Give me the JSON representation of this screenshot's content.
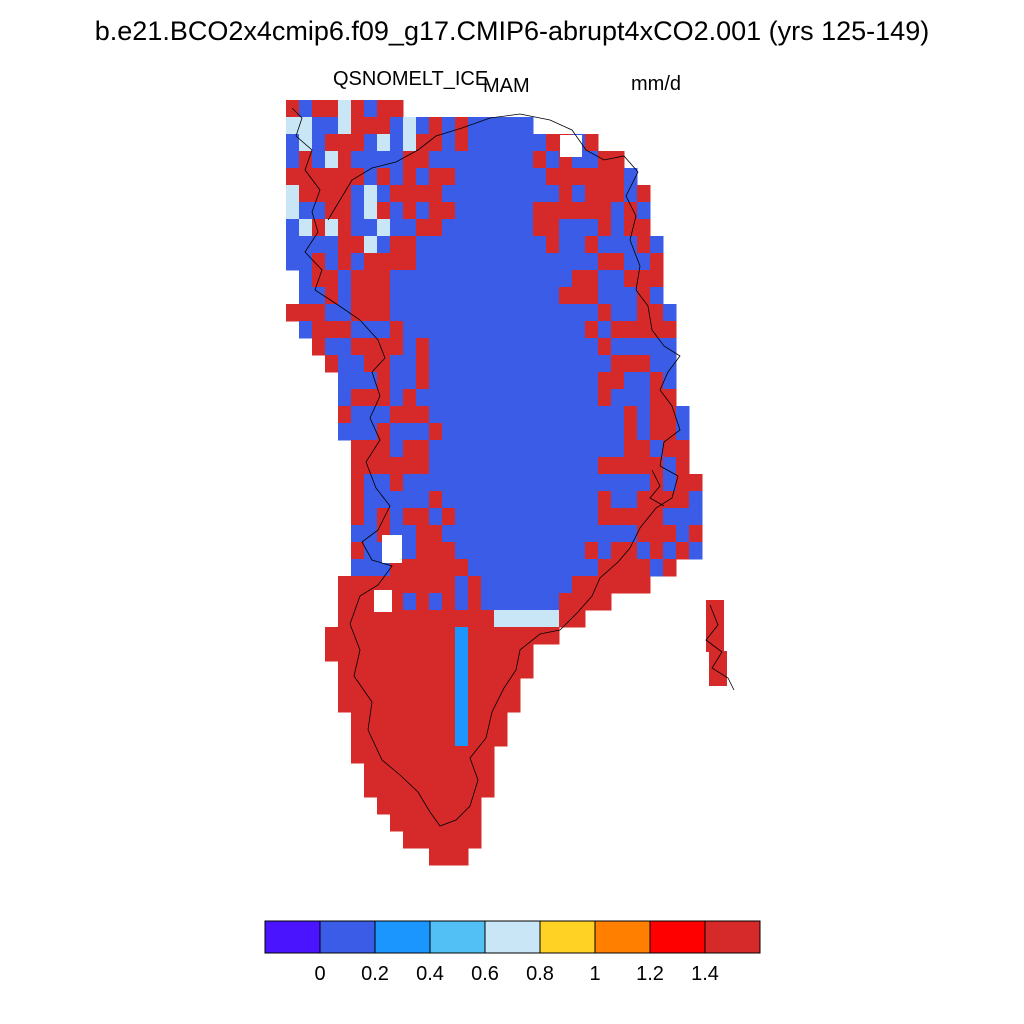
{
  "title": "b.e21.BCO2x4cmip6.f09_g17.CMIP6-abrupt4xCO2.001 (yrs 125-149)",
  "variable": "QSNOMELT_ICE",
  "season": "MAM",
  "units": "mm/d",
  "colors": {
    "palette": [
      "#4a14ff",
      "#3b5ce6",
      "#1c96ff",
      "#52bff5",
      "#c8e6f5",
      "#ffd224",
      "#ff8000",
      "#ff0000",
      "#d62a2a"
    ],
    "coastline": "#000000"
  },
  "colorbar": {
    "labels": [
      "0",
      "0.2",
      "0.4",
      "0.6",
      "0.8",
      "1",
      "1.2",
      "1.4"
    ]
  },
  "map": {
    "region": "Greenland",
    "projection": "polar stereographic",
    "field_summary": "interior ice sheet in the lowest colour band (0–0.2 mm/d), margins rising through blue and yellow bands to above 1.4 mm/d along the southern and western coasts"
  }
}
